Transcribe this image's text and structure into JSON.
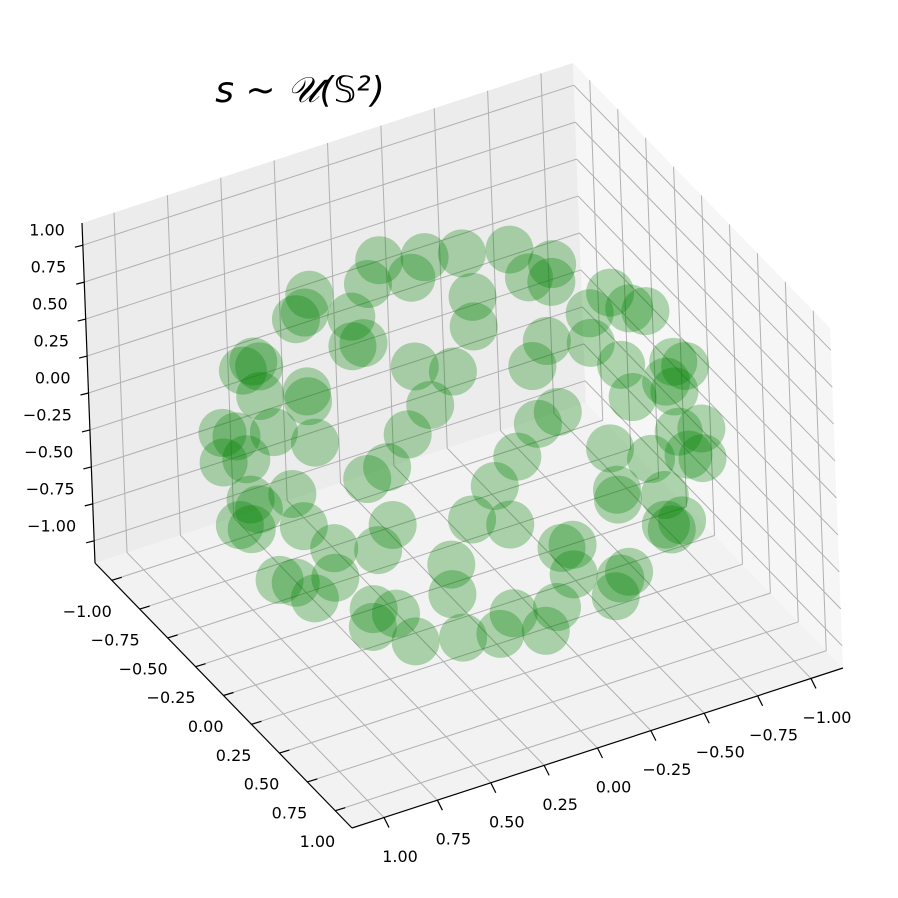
{
  "chart_data": {
    "type": "scatter3d",
    "title": "s ~ 𝒰(𝕊²)",
    "color": "#008000",
    "x": [
      0.44,
      0.22,
      -0.22,
      -0.44,
      -0.22,
      0.22,
      0.44,
      0.22,
      -0.22,
      -0.44,
      -0.22,
      0.22,
      0.71,
      0.5,
      0,
      -0.5,
      -0.71,
      -0.5,
      0,
      0.5,
      0.71,
      0.5,
      0,
      -0.5,
      -0.71,
      -0.5,
      0,
      0.5,
      0.87,
      0.7,
      0.27,
      -0.27,
      -0.7,
      -0.87,
      -0.7,
      -0.27,
      0.27,
      0.7,
      0.87,
      0.7,
      0.27,
      -0.27,
      -0.7,
      -0.87,
      -0.7,
      -0.27,
      0.27,
      0.7,
      0.92,
      0.67,
      0.25,
      -0.25,
      -0.67,
      -0.92,
      -0.92,
      -0.67,
      -0.25,
      0.25,
      0.67,
      0.92,
      0.92,
      0.67,
      0.25,
      -0.25,
      -0.67,
      -0.92,
      -0.92,
      -0.67,
      -0.25,
      0.25,
      0.67,
      0.92,
      0.99,
      0.86,
      0.5,
      0,
      -0.5,
      -0.86,
      -0.99,
      -0.86,
      -0.5,
      0,
      0.5,
      0.86,
      0.99,
      0.86,
      0.5,
      0,
      -0.5,
      -0.86,
      -0.99,
      -0.86,
      -0.5,
      0,
      0.5,
      0.86
    ],
    "y": [
      0,
      0.38,
      0.38,
      0,
      -0.38,
      -0.38,
      0,
      0.38,
      0.38,
      0,
      -0.38,
      -0.38,
      0,
      0.5,
      0.71,
      0.5,
      0,
      -0.5,
      -0.71,
      -0.5,
      0,
      0.5,
      0.71,
      0.5,
      0,
      -0.5,
      -0.71,
      -0.5,
      0,
      0.51,
      0.83,
      0.83,
      0.51,
      0,
      -0.51,
      -0.83,
      -0.83,
      -0.51,
      0,
      0.51,
      0.83,
      0.83,
      0.51,
      0,
      -0.51,
      -0.83,
      -0.83,
      -0.51,
      0.25,
      0.67,
      0.92,
      0.92,
      0.67,
      0.25,
      -0.25,
      -0.67,
      -0.92,
      -0.92,
      -0.67,
      -0.25,
      0.25,
      0.67,
      0.92,
      0.92,
      0.67,
      0.25,
      -0.25,
      -0.67,
      -0.92,
      -0.92,
      -0.67,
      -0.25,
      0,
      0.5,
      0.86,
      0.99,
      0.86,
      0.5,
      0,
      -0.5,
      -0.86,
      -0.99,
      -0.86,
      -0.5,
      0,
      0.5,
      0.86,
      0.99,
      0.86,
      0.5,
      0,
      -0.5,
      -0.86,
      -0.99,
      -0.86,
      -0.5
    ],
    "z": [
      0.9,
      0.9,
      0.9,
      0.9,
      0.9,
      0.9,
      -0.9,
      -0.9,
      -0.9,
      -0.9,
      -0.9,
      -0.9,
      0.7,
      0.7,
      0.7,
      0.7,
      0.7,
      0.7,
      0.7,
      0.7,
      -0.7,
      -0.7,
      -0.7,
      -0.7,
      -0.7,
      -0.7,
      -0.7,
      -0.7,
      0.5,
      0.5,
      0.5,
      0.5,
      0.5,
      0.5,
      0.5,
      0.5,
      0.5,
      0.5,
      -0.5,
      -0.5,
      -0.5,
      -0.5,
      -0.5,
      -0.5,
      -0.5,
      -0.5,
      -0.5,
      -0.5,
      0.3,
      0.3,
      0.3,
      0.3,
      0.3,
      0.3,
      0.3,
      0.3,
      0.3,
      0.3,
      0.3,
      0.3,
      -0.3,
      -0.3,
      -0.3,
      -0.3,
      -0.3,
      -0.3,
      -0.3,
      -0.3,
      -0.3,
      -0.3,
      -0.3,
      -0.3,
      0.1,
      0.1,
      0.1,
      0.1,
      0.1,
      0.1,
      0.1,
      0.1,
      0.1,
      0.1,
      0.1,
      0.1,
      -0.1,
      -0.1,
      -0.1,
      -0.1,
      -0.1,
      -0.1,
      -0.1,
      -0.1,
      -0.1,
      -0.1,
      -0.1,
      -0.1
    ],
    "xlim": [
      -1.15,
      1.15
    ],
    "ylim": [
      -1.15,
      1.15
    ],
    "zlim": [
      -1.15,
      1.15
    ],
    "xticks": [
      {
        "value": -1,
        "label": "−1.00"
      },
      {
        "value": -0.75,
        "label": "−0.75"
      },
      {
        "value": -0.5,
        "label": "−0.50"
      },
      {
        "value": -0.25,
        "label": "−0.25"
      },
      {
        "value": 0,
        "label": "0.00"
      },
      {
        "value": 0.25,
        "label": "0.25"
      },
      {
        "value": 0.5,
        "label": "0.50"
      },
      {
        "value": 0.75,
        "label": "0.75"
      },
      {
        "value": 1,
        "label": "1.00"
      }
    ],
    "yticks": [
      {
        "value": -1,
        "label": "−1.00"
      },
      {
        "value": -0.75,
        "label": "−0.75"
      },
      {
        "value": -0.5,
        "label": "−0.50"
      },
      {
        "value": -0.25,
        "label": "−0.25"
      },
      {
        "value": 0,
        "label": "0.00"
      },
      {
        "value": 0.25,
        "label": "0.25"
      },
      {
        "value": 0.5,
        "label": "0.50"
      },
      {
        "value": 0.75,
        "label": "0.75"
      },
      {
        "value": 1,
        "label": "1.00"
      }
    ],
    "zticks": [
      {
        "value": -1,
        "label": "−1.00"
      },
      {
        "value": -0.75,
        "label": "−0.75"
      },
      {
        "value": -0.5,
        "label": "−0.50"
      },
      {
        "value": -0.25,
        "label": "−0.25"
      },
      {
        "value": 0,
        "label": "0.00"
      },
      {
        "value": 0.25,
        "label": "0.25"
      },
      {
        "value": 0.5,
        "label": "0.50"
      },
      {
        "value": 0.75,
        "label": "0.75"
      },
      {
        "value": 1,
        "label": "1.00"
      }
    ],
    "grid": true
  }
}
